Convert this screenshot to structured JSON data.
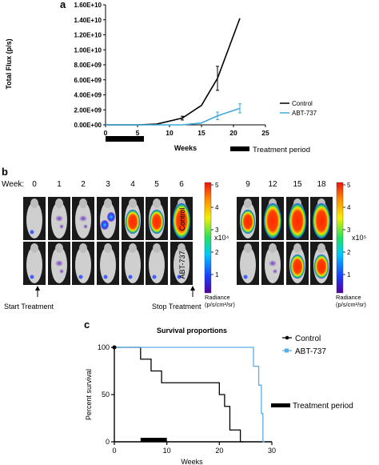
{
  "panel_a": {
    "letter": "a",
    "ylabel": "Total Flux (p/s)",
    "xlabel": "Weeks",
    "yticks": [
      "0.00E+00",
      "2.00E+09",
      "4.00E+09",
      "6.00E+09",
      "8.00E+09",
      "1.00E+10",
      "1.20E+10",
      "1.40E+10",
      "1.60E+10"
    ],
    "xticks": [
      "0",
      "5",
      "10",
      "15",
      "20",
      "25"
    ],
    "legend": [
      "Control",
      "ABT-737"
    ],
    "treatment_label": "Treatment period"
  },
  "panel_b": {
    "letter": "b",
    "week_label": "Week:",
    "weeks_left": [
      "0",
      "1",
      "2",
      "3",
      "4",
      "5",
      "6"
    ],
    "weeks_right": [
      "9",
      "12",
      "15",
      "18"
    ],
    "row_labels": [
      "Control",
      "ABT-737"
    ],
    "scale_left": [
      "5",
      "4",
      "3",
      "2",
      "1"
    ],
    "scale_right": [
      "5",
      "4",
      "3",
      "2",
      "1"
    ],
    "multiplier_left": "x10⁴",
    "multiplier_right": "x10⁵",
    "radiance_title": "Radiance",
    "radiance_units": "(p/s/cm²/sr)",
    "start_treatment": "Start Treatment",
    "stop_treatment": "Stop Treatment"
  },
  "panel_c": {
    "letter": "c",
    "title": "Survival proportions",
    "ylabel": "Percent survival",
    "xlabel": "Weeks",
    "yticks": [
      "0",
      "50",
      "100"
    ],
    "xticks": [
      "0",
      "10",
      "20",
      "30"
    ],
    "legend": [
      "Control",
      "ABT-737"
    ],
    "treatment_label": "Treatment period"
  },
  "colors": {
    "control": "#000000",
    "abt": "#3fa9dc",
    "treatment_bar": "#000000"
  },
  "chart_data": [
    {
      "type": "line",
      "xlabel": "Weeks",
      "ylabel": "Total Flux (p/s)",
      "xlim": [
        0,
        25
      ],
      "ylim": [
        0,
        16000000000.0
      ],
      "treatment_period": [
        0,
        6
      ],
      "series": [
        {
          "name": "Control",
          "x": [
            0,
            5,
            8,
            12,
            15,
            17.5,
            21
          ],
          "y": [
            0,
            0,
            100000000.0,
            900000000.0,
            2600000000.0,
            6200000000.0,
            14200000000.0
          ],
          "err": [
            0,
            0,
            0,
            250000000.0,
            0,
            1600000000.0,
            0
          ]
        },
        {
          "name": "ABT-737",
          "x": [
            0,
            5,
            8,
            12,
            15,
            17.5,
            21
          ],
          "y": [
            0,
            0,
            0,
            0,
            250000000.0,
            1200000000.0,
            2200000000.0
          ],
          "err": [
            0,
            0,
            0,
            0,
            0,
            500000000.0,
            600000000.0
          ]
        }
      ]
    },
    {
      "type": "line",
      "title": "Survival proportions",
      "xlabel": "Weeks",
      "ylabel": "Percent survival",
      "xlim": [
        0,
        30
      ],
      "ylim": [
        0,
        100
      ],
      "treatment_period": [
        5,
        10
      ],
      "series": [
        {
          "name": "Control",
          "steps": [
            [
              0,
              100
            ],
            [
              5,
              100
            ],
            [
              5,
              87.5
            ],
            [
              7,
              87.5
            ],
            [
              7,
              75
            ],
            [
              9,
              75
            ],
            [
              9,
              62.5
            ],
            [
              13,
              62.5
            ],
            [
              13,
              62.5
            ],
            [
              20,
              62.5
            ],
            [
              20,
              50
            ],
            [
              21,
              50
            ],
            [
              21,
              37.5
            ],
            [
              22,
              37.5
            ],
            [
              22,
              12.5
            ],
            [
              24,
              12.5
            ],
            [
              24,
              0
            ],
            [
              24.5,
              0
            ]
          ]
        },
        {
          "name": "ABT-737",
          "steps": [
            [
              0,
              100
            ],
            [
              26.5,
              100
            ],
            [
              26.5,
              80
            ],
            [
              27.5,
              80
            ],
            [
              27.5,
              60
            ],
            [
              28,
              60
            ],
            [
              28,
              30
            ],
            [
              28.3,
              30
            ],
            [
              28.3,
              0
            ],
            [
              28.6,
              0
            ]
          ]
        }
      ]
    }
  ]
}
